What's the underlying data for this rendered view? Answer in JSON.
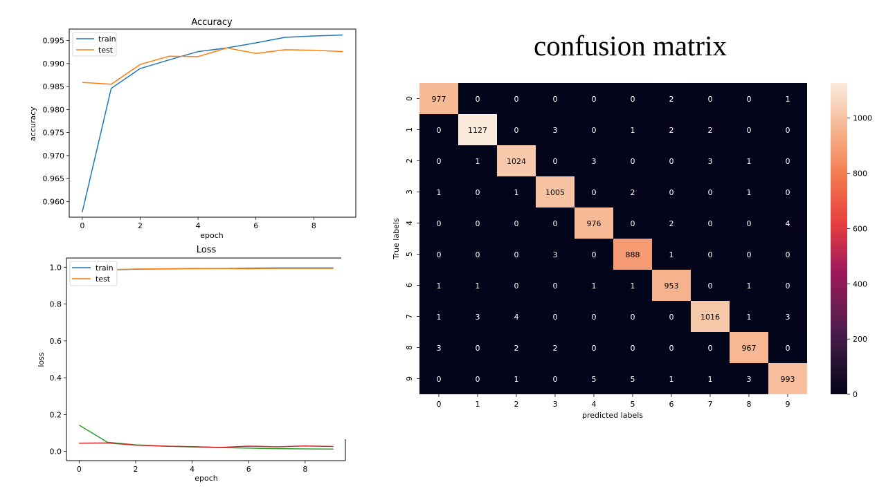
{
  "chart_data": [
    {
      "type": "line",
      "title": "Accuracy",
      "xlabel": "epoch",
      "ylabel": "accuracy",
      "xlim": [
        -0.45,
        9.45
      ],
      "ylim": [
        0.9566,
        0.9975
      ],
      "xticks": [
        0,
        2,
        4,
        6,
        8
      ],
      "yticks": [
        0.96,
        0.965,
        0.97,
        0.975,
        0.98,
        0.985,
        0.99,
        0.995
      ],
      "ytick_labels": [
        "0.960",
        "0.965",
        "0.970",
        "0.975",
        "0.980",
        "0.985",
        "0.990",
        "0.995"
      ],
      "x": [
        0,
        1,
        2,
        3,
        4,
        5,
        6,
        7,
        8,
        9
      ],
      "legend_position": "top-left",
      "grid": false,
      "series": [
        {
          "name": "train",
          "color": "#1f77b4",
          "values": [
            0.9577,
            0.9846,
            0.9889,
            0.9908,
            0.9926,
            0.9934,
            0.9945,
            0.9957,
            0.996,
            0.9962
          ]
        },
        {
          "name": "test",
          "color": "#ff7f0e",
          "values": [
            0.9859,
            0.9855,
            0.9898,
            0.9916,
            0.9915,
            0.9934,
            0.9922,
            0.993,
            0.9929,
            0.9926
          ]
        }
      ]
    },
    {
      "type": "line",
      "title": "Loss",
      "xlabel": "epoch",
      "ylabel": "loss",
      "xlim": [
        -0.45,
        9.45
      ],
      "ylim": [
        -0.05,
        1.05
      ],
      "xticks": [
        0,
        2,
        4,
        6,
        8
      ],
      "yticks": [
        0.0,
        0.2,
        0.4,
        0.6,
        0.8,
        1.0
      ],
      "ytick_labels": [
        "0.0",
        "0.2",
        "0.4",
        "0.6",
        "0.8",
        "1.0"
      ],
      "x": [
        0,
        1,
        2,
        3,
        4,
        5,
        6,
        7,
        8,
        9
      ],
      "legend_position": "top-left",
      "grid": false,
      "series": [
        {
          "name": "train",
          "color": "#1f77b4",
          "values": [
            0.958,
            0.985,
            0.989,
            0.991,
            0.993,
            0.993,
            0.995,
            0.996,
            0.996,
            0.996
          ]
        },
        {
          "name": "test",
          "color": "#ff7f0e",
          "values": [
            0.986,
            0.986,
            0.99,
            0.992,
            0.992,
            0.993,
            0.992,
            0.993,
            0.993,
            0.993
          ]
        },
        {
          "name": "",
          "color": "#2ca02c",
          "values": [
            0.143,
            0.05,
            0.036,
            0.029,
            0.024,
            0.021,
            0.018,
            0.015,
            0.014,
            0.013
          ]
        },
        {
          "name": "",
          "color": "#d62728",
          "values": [
            0.045,
            0.046,
            0.034,
            0.029,
            0.026,
            0.022,
            0.029,
            0.025,
            0.03,
            0.027
          ]
        }
      ]
    },
    {
      "type": "heatmap",
      "title": "confusion matrix",
      "xlabel": "predicted labels",
      "ylabel": "True labels",
      "categories": [
        "0",
        "1",
        "2",
        "3",
        "4",
        "5",
        "6",
        "7",
        "8",
        "9"
      ],
      "colorbar": {
        "min": 0,
        "max": 1127,
        "ticks": [
          0,
          200,
          400,
          600,
          800,
          1000
        ],
        "tick_labels": [
          "0",
          "200",
          "400",
          "600",
          "800",
          "1000"
        ],
        "colormap": "rocket"
      },
      "values": [
        [
          977,
          0,
          0,
          0,
          0,
          0,
          2,
          0,
          0,
          1
        ],
        [
          0,
          1127,
          0,
          3,
          0,
          1,
          2,
          2,
          0,
          0
        ],
        [
          0,
          1,
          1024,
          0,
          3,
          0,
          0,
          3,
          1,
          0
        ],
        [
          1,
          0,
          1,
          1005,
          0,
          2,
          0,
          0,
          1,
          0
        ],
        [
          0,
          0,
          0,
          0,
          976,
          0,
          2,
          0,
          0,
          4
        ],
        [
          0,
          0,
          0,
          3,
          0,
          888,
          1,
          0,
          0,
          0
        ],
        [
          1,
          1,
          0,
          0,
          1,
          1,
          953,
          0,
          1,
          0
        ],
        [
          1,
          3,
          4,
          0,
          0,
          0,
          0,
          1016,
          1,
          3
        ],
        [
          3,
          0,
          2,
          2,
          0,
          0,
          0,
          0,
          967,
          0
        ],
        [
          0,
          0,
          1,
          0,
          5,
          5,
          1,
          1,
          3,
          993
        ]
      ]
    }
  ]
}
